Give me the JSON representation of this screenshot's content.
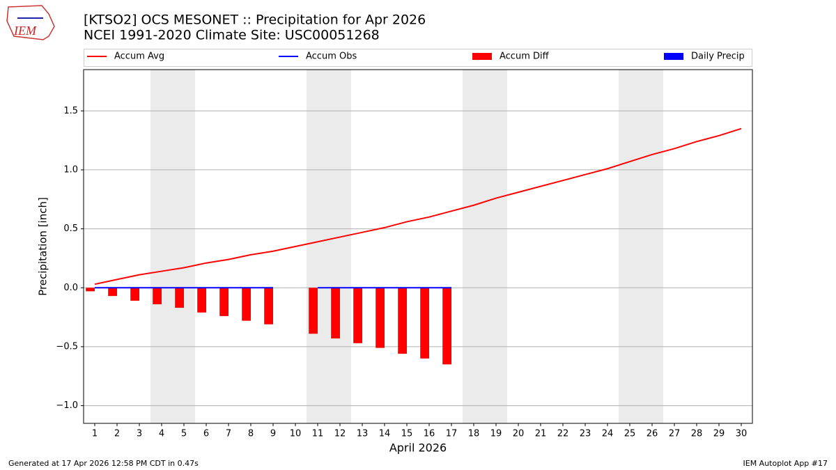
{
  "logo": "IEM",
  "chart_data": {
    "type": "combo",
    "title": "[KTSO2] OCS MESONET :: Precipitation for Apr 2026",
    "subtitle": "NCEI 1991-2020 Climate Site: USC00051268",
    "x_label": "April 2026",
    "y_label": "Precipitation [inch]",
    "x": [
      1,
      2,
      3,
      4,
      5,
      6,
      7,
      8,
      9,
      10,
      11,
      12,
      13,
      14,
      15,
      16,
      17,
      18,
      19,
      20,
      21,
      22,
      23,
      24,
      25,
      26,
      27,
      28,
      29,
      30
    ],
    "xlim": [
      0.5,
      30.5
    ],
    "xticks": [
      1,
      2,
      3,
      4,
      5,
      6,
      7,
      8,
      9,
      10,
      11,
      12,
      13,
      14,
      15,
      16,
      17,
      18,
      19,
      20,
      21,
      22,
      23,
      24,
      25,
      26,
      27,
      28,
      29,
      30
    ],
    "ylim": [
      -1.15,
      1.85
    ],
    "yticks": [
      {
        "value": -1,
        "label": "−1.0"
      },
      {
        "value": -0.5,
        "label": "−0.5"
      },
      {
        "value": 0,
        "label": "0.0"
      },
      {
        "value": 0.5,
        "label": "0.5"
      },
      {
        "value": 1,
        "label": "1.0"
      },
      {
        "value": 1.5,
        "label": "1.5"
      }
    ],
    "grid": true,
    "shaded_spans": [
      [
        3.5,
        5.5
      ],
      [
        10.5,
        12.5
      ],
      [
        17.5,
        19.5
      ],
      [
        24.5,
        26.5
      ]
    ],
    "series": [
      {
        "name": "Accum Avg",
        "type": "line",
        "color": "#ff0000",
        "values": [
          0.03,
          0.07,
          0.11,
          0.14,
          0.17,
          0.21,
          0.24,
          0.28,
          0.31,
          0.35,
          0.39,
          0.43,
          0.47,
          0.51,
          0.56,
          0.6,
          0.65,
          0.7,
          0.76,
          0.81,
          0.86,
          0.91,
          0.96,
          1.01,
          1.07,
          1.13,
          1.18,
          1.24,
          1.29,
          1.35
        ]
      },
      {
        "name": "Accum Obs",
        "type": "line",
        "color": "#0000ff",
        "values": [
          0,
          0,
          0,
          0,
          0,
          0,
          0,
          0,
          0,
          null,
          0,
          0,
          0,
          0,
          0,
          0,
          0,
          null,
          null,
          null,
          null,
          null,
          null,
          null,
          null,
          null,
          null,
          null,
          null,
          null
        ]
      },
      {
        "name": "Accum Diff",
        "type": "bar",
        "color": "#ff0000",
        "values": [
          -0.03,
          -0.07,
          -0.11,
          -0.14,
          -0.17,
          -0.21,
          -0.24,
          -0.28,
          -0.31,
          null,
          -0.39,
          -0.43,
          -0.47,
          -0.51,
          -0.56,
          -0.6,
          -0.65,
          null,
          null,
          null,
          null,
          null,
          null,
          null,
          null,
          null,
          null,
          null,
          null,
          null
        ]
      },
      {
        "name": "Daily Precip",
        "type": "bar",
        "color": "#0000ff",
        "values": [
          0,
          0,
          0,
          0,
          0,
          0,
          0,
          0,
          0,
          null,
          0,
          0,
          0,
          0,
          0,
          0,
          0,
          null,
          null,
          null,
          null,
          null,
          null,
          null,
          null,
          null,
          null,
          null,
          null,
          null
        ]
      }
    ],
    "footer_left": "Generated at 17 Apr 2026 12:58 PM CDT in 0.47s",
    "footer_right": "IEM Autoplot App #17"
  }
}
